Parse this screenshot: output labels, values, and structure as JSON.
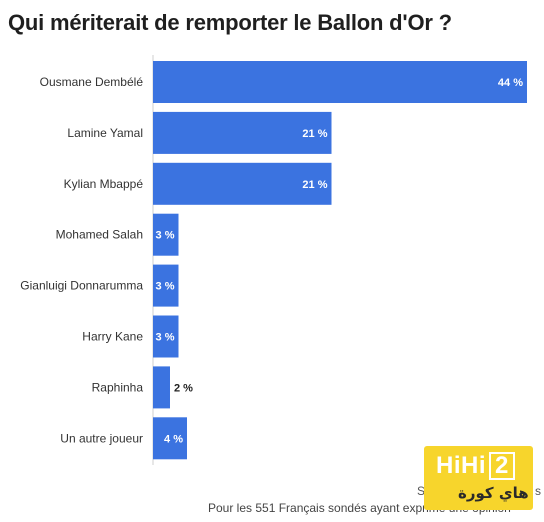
{
  "title": "Qui mériterait de remporter le Ballon d'Or ?",
  "chart_data": {
    "type": "bar",
    "orientation": "horizontal",
    "categories": [
      "Ousmane Dembélé",
      "Lamine Yamal",
      "Kylian Mbappé",
      "Mohamed Salah",
      "Gianluigi Donnarumma",
      "Harry Kane",
      "Raphinha",
      "Un autre joueur"
    ],
    "values": [
      44,
      21,
      21,
      3,
      3,
      3,
      2,
      4
    ],
    "value_labels": [
      "44 %",
      "21 %",
      "21 %",
      "3 %",
      "3 %",
      "3 %",
      "2 %",
      "4 %"
    ],
    "xlim": [
      0,
      44
    ],
    "bar_color": "#3b73e0",
    "grid": false
  },
  "source_text": "S",
  "source_suffix": "s",
  "note": "Pour les 551 Français sondés ayant exprimé une opinion",
  "watermark": {
    "latin": "HiHi2",
    "arabic": "هاي كورة",
    "color": "#f7d52c"
  }
}
